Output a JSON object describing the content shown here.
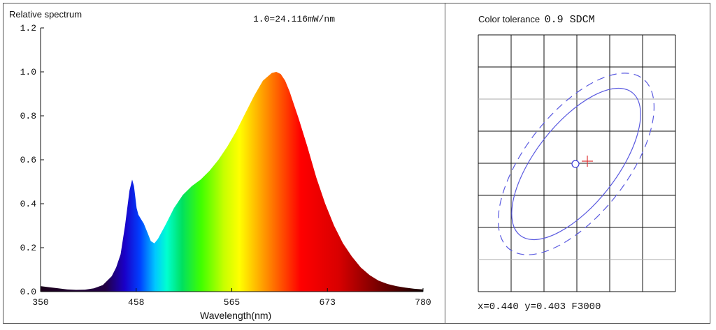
{
  "spectrum": {
    "chart_data": {
      "type": "area",
      "title": "Relative spectrum",
      "annotation": "1.0=24.116mW/nm",
      "xlabel": "Wavelength(nm)",
      "ylabel": "",
      "xlim": [
        350,
        780
      ],
      "ylim": [
        0,
        1.2
      ],
      "x_ticks": [
        "350",
        "458",
        "565",
        "673",
        "780"
      ],
      "y_ticks": [
        "0.0",
        "0.2",
        "0.4",
        "0.6",
        "0.8",
        "1.0",
        "1.2"
      ],
      "x": [
        350,
        360,
        370,
        380,
        390,
        400,
        410,
        420,
        430,
        435,
        440,
        445,
        450,
        453,
        455,
        458,
        460,
        463,
        466,
        470,
        474,
        478,
        482,
        486,
        490,
        495,
        500,
        510,
        520,
        530,
        540,
        550,
        560,
        570,
        580,
        590,
        600,
        610,
        615,
        620,
        625,
        630,
        635,
        640,
        650,
        660,
        670,
        680,
        690,
        700,
        710,
        720,
        730,
        740,
        750,
        760,
        770,
        780
      ],
      "values": [
        0.025,
        0.02,
        0.015,
        0.01,
        0.008,
        0.009,
        0.015,
        0.03,
        0.07,
        0.11,
        0.17,
        0.3,
        0.46,
        0.51,
        0.48,
        0.38,
        0.35,
        0.33,
        0.31,
        0.27,
        0.23,
        0.22,
        0.24,
        0.27,
        0.3,
        0.34,
        0.38,
        0.44,
        0.48,
        0.51,
        0.55,
        0.6,
        0.66,
        0.73,
        0.81,
        0.89,
        0.96,
        0.995,
        1.0,
        0.99,
        0.96,
        0.91,
        0.85,
        0.79,
        0.66,
        0.52,
        0.4,
        0.3,
        0.22,
        0.16,
        0.11,
        0.075,
        0.05,
        0.035,
        0.025,
        0.018,
        0.013,
        0.01
      ],
      "grid": false
    }
  },
  "tolerance": {
    "title_label": "Color tolerance",
    "title_value": "0.9 SDCM",
    "readout": "x=0.440 y=0.403 F3000",
    "chart_data": {
      "type": "scatter",
      "grid": true,
      "series": [
        {
          "name": "",
          "marker": "circle",
          "x": [
            0.44
          ],
          "y": [
            0.403
          ],
          "color": "#3a3ad8"
        },
        {
          "name": "",
          "marker": "cross",
          "x": [
            0.441
          ],
          "y": [
            0.403
          ],
          "color": "#e03030"
        }
      ],
      "ellipses": [
        {
          "style": "solid",
          "color": "#5a5ae0"
        },
        {
          "style": "dashed",
          "color": "#5a5ae0"
        }
      ]
    }
  }
}
